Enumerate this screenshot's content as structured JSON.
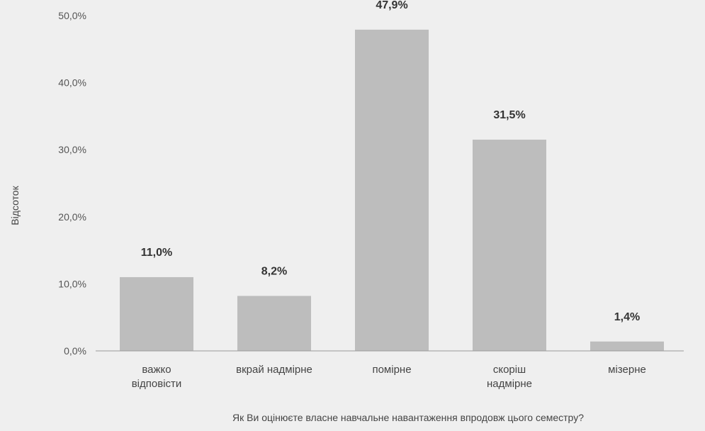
{
  "chart_data": {
    "type": "bar",
    "title": "",
    "xlabel": "Як Ви оцінюєте власне навчальне навантаження впродовж цього семестру?",
    "ylabel": "Відсоток",
    "ylim": [
      0,
      50
    ],
    "yticks": [
      "0,0%",
      "10,0%",
      "20,0%",
      "30,0%",
      "40,0%",
      "50,0%"
    ],
    "categories": [
      [
        "важко",
        "відповісти"
      ],
      [
        "вкрай надмірне"
      ],
      [
        "помірне"
      ],
      [
        "скоріш",
        "надмірне"
      ],
      [
        "мізерне"
      ]
    ],
    "values": [
      11.0,
      8.2,
      47.9,
      31.5,
      1.4
    ],
    "value_labels": [
      "11,0%",
      "8,2%",
      "47,9%",
      "31,5%",
      "1,4%"
    ],
    "grid": false,
    "legend": "none",
    "colors": {
      "bar": "#bdbdbd",
      "baseline": "#9a9a9a",
      "background": "#efefef"
    }
  }
}
